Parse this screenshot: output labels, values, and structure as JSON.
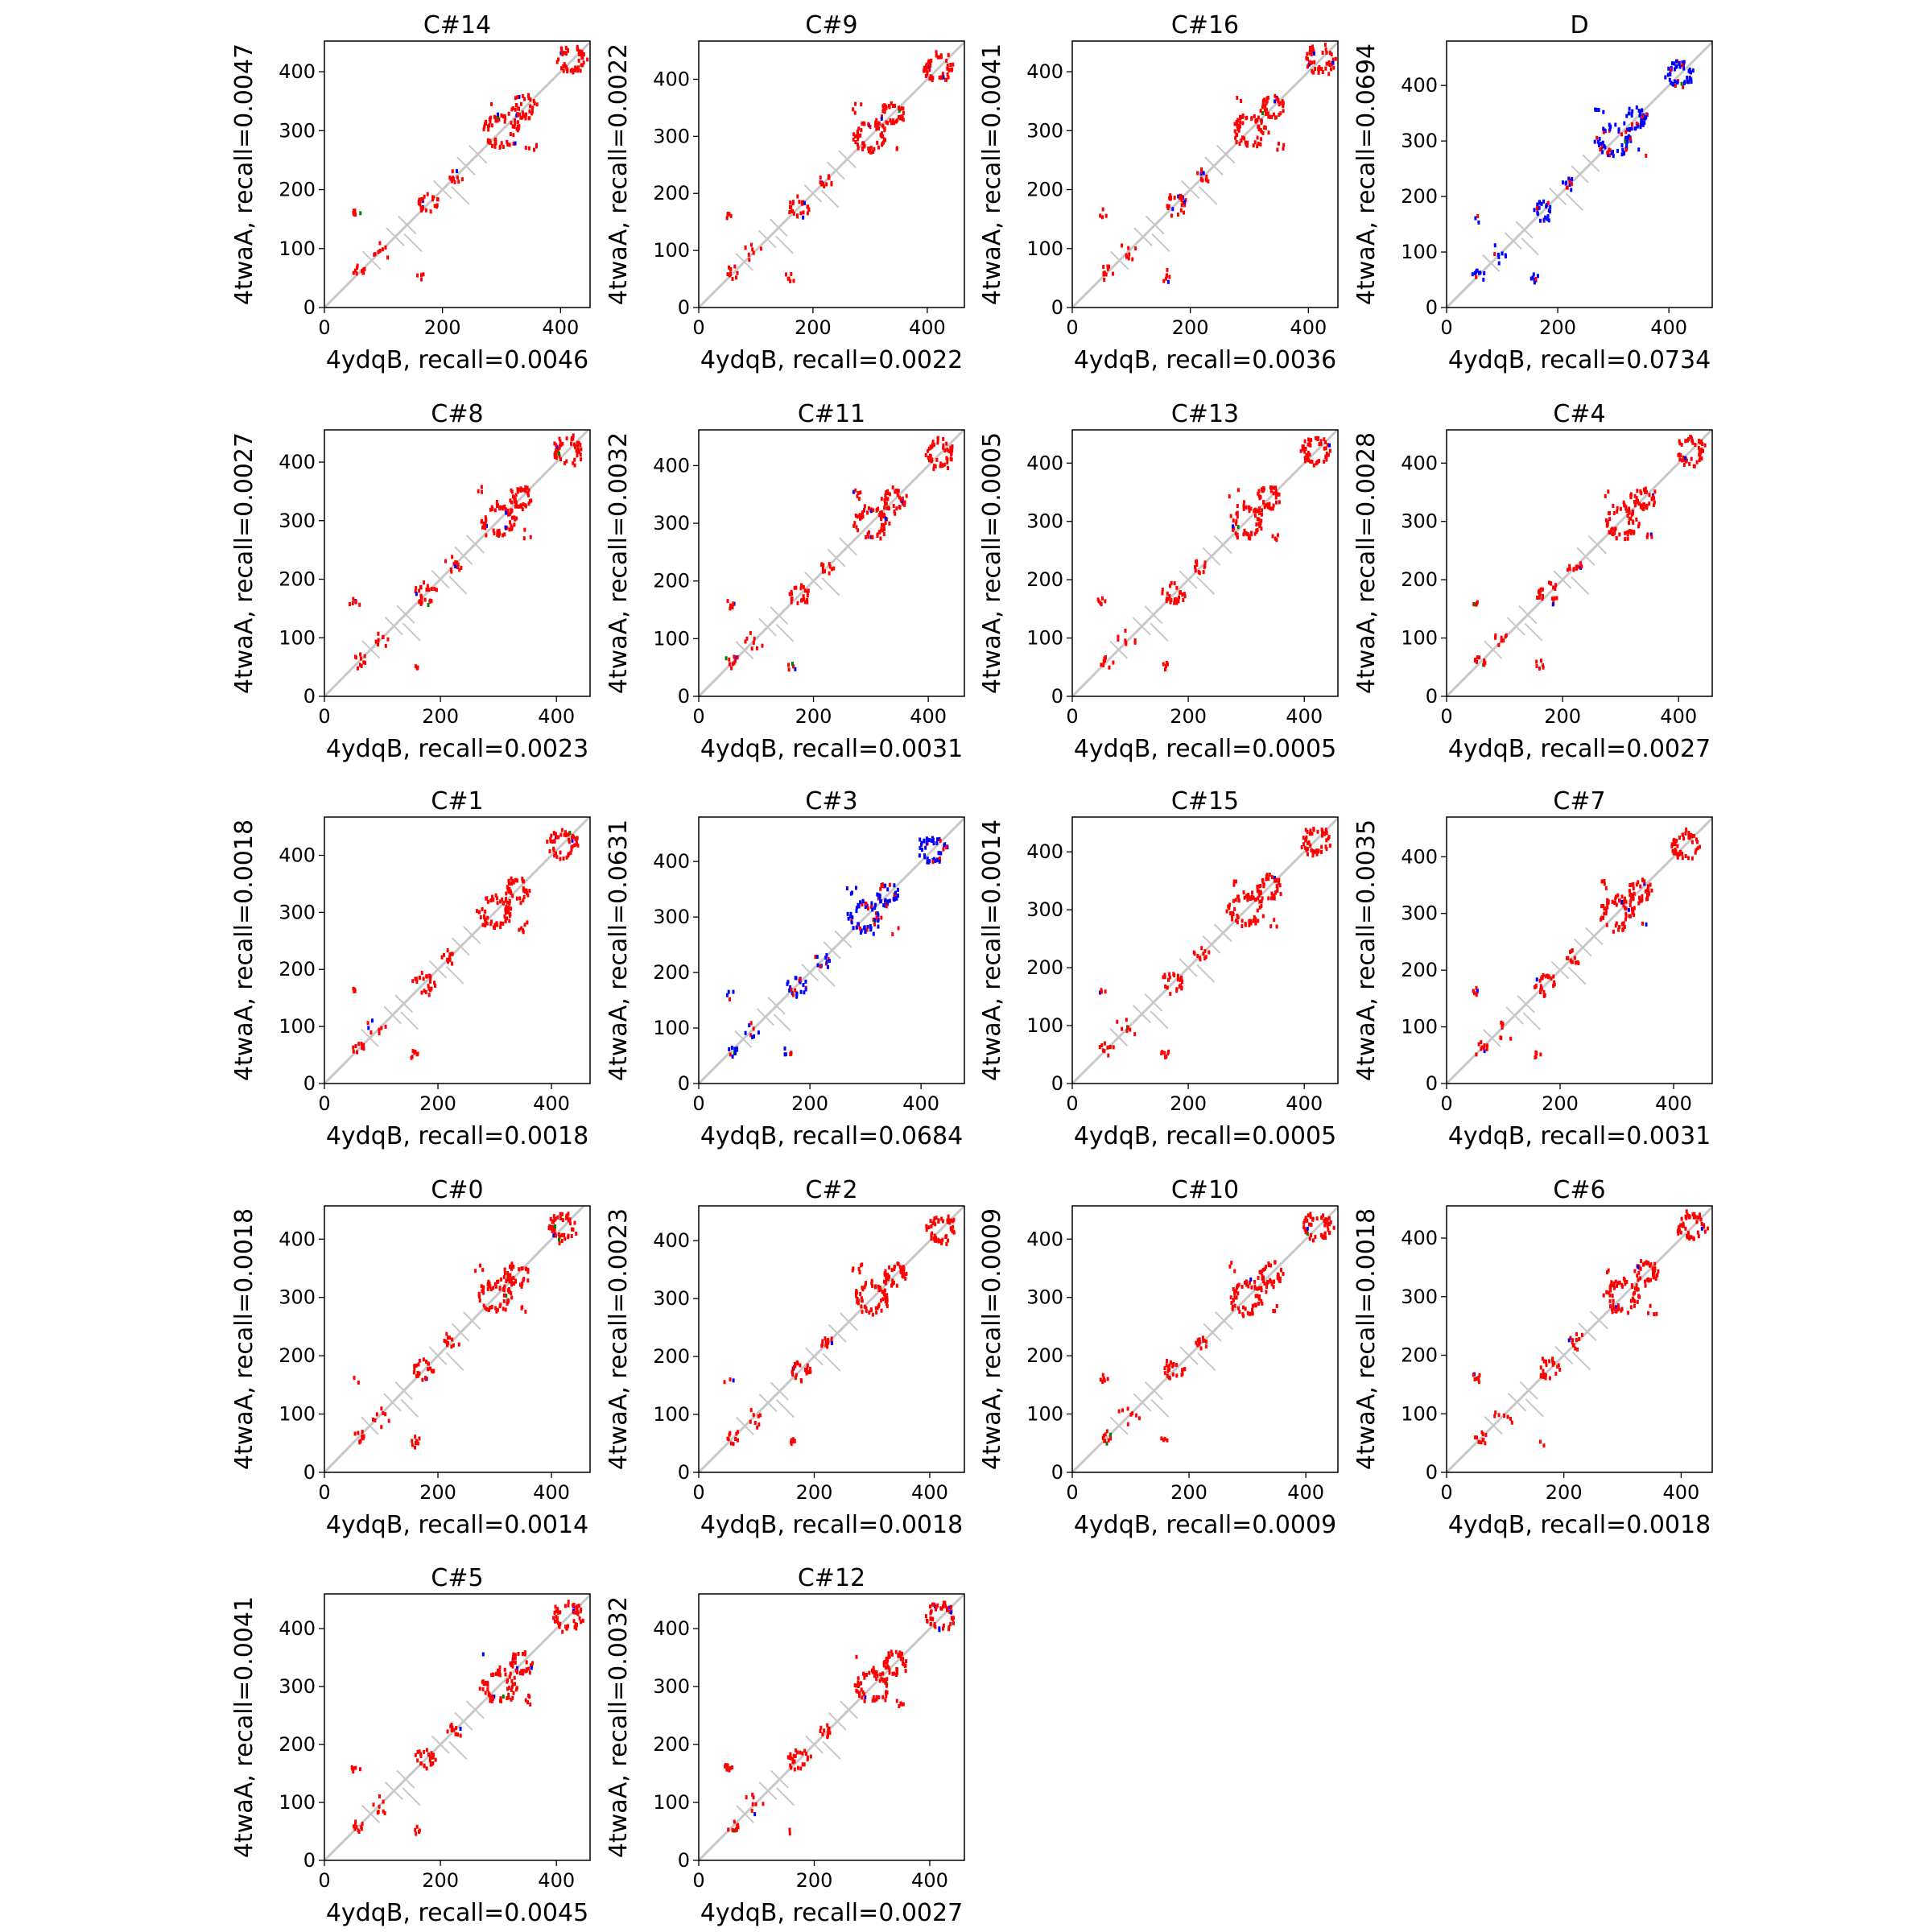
{
  "chart_data": {
    "type": "scatter",
    "description_units": "residue index",
    "colors": {
      "predicted_only": "#ff0000",
      "true_positive": "#0000ff",
      "near_hit": "#008000",
      "reference": "#c8c8c8"
    },
    "reference_crosses": [
      [
        80,
        80
      ],
      [
        120,
        120
      ],
      [
        140,
        140
      ],
      [
        200,
        200
      ],
      [
        240,
        240
      ],
      [
        260,
        260
      ],
      [
        150,
        110
      ],
      [
        230,
        190
      ]
    ],
    "panels": [
      {
        "title": "C#14",
        "xlabel": "4ydqB, recall=0.0046",
        "ylabel": "4twaA, recall=0.0047",
        "xlim": [
          0,
          450
        ],
        "ylim": [
          0,
          452
        ],
        "xticks": [
          "0",
          "200",
          "400"
        ],
        "yticks": [
          "0",
          "100",
          "200",
          "300",
          "400"
        ],
        "mode": "red",
        "blue_frac": 0.05
      },
      {
        "title": "C#9",
        "xlabel": "4ydqB, recall=0.0022",
        "ylabel": "4twaA, recall=0.0022",
        "xlim": [
          0,
          465
        ],
        "ylim": [
          0,
          467
        ],
        "xticks": [
          "0",
          "200",
          "400"
        ],
        "yticks": [
          "0",
          "100",
          "200",
          "300",
          "400"
        ],
        "mode": "red",
        "blue_frac": 0.03
      },
      {
        "title": "C#16",
        "xlabel": "4ydqB, recall=0.0036",
        "ylabel": "4twaA, recall=0.0041",
        "xlim": [
          0,
          450
        ],
        "ylim": [
          0,
          452
        ],
        "xticks": [
          "0",
          "200",
          "400"
        ],
        "yticks": [
          "0",
          "100",
          "200",
          "300",
          "400"
        ],
        "mode": "red",
        "blue_frac": 0.04
      },
      {
        "title": "D",
        "xlabel": "4ydqB, recall=0.0734",
        "ylabel": "4twaA, recall=0.0694",
        "xlim": [
          0,
          478
        ],
        "ylim": [
          0,
          480
        ],
        "xticks": [
          "0",
          "200",
          "400"
        ],
        "yticks": [
          "0",
          "100",
          "200",
          "300",
          "400"
        ],
        "mode": "blue",
        "blue_frac": 0.8
      },
      {
        "title": "C#8",
        "xlabel": "4ydqB, recall=0.0023",
        "ylabel": "4twaA, recall=0.0027",
        "xlim": [
          0,
          458
        ],
        "ylim": [
          0,
          455
        ],
        "xticks": [
          "0",
          "200",
          "400"
        ],
        "yticks": [
          "0",
          "100",
          "200",
          "300",
          "400"
        ],
        "mode": "red",
        "blue_frac": 0.03
      },
      {
        "title": "C#11",
        "xlabel": "4ydqB, recall=0.0031",
        "ylabel": "4twaA, recall=0.0032",
        "xlim": [
          0,
          463
        ],
        "ylim": [
          0,
          462
        ],
        "xticks": [
          "0",
          "200",
          "400"
        ],
        "yticks": [
          "0",
          "100",
          "200",
          "300",
          "400"
        ],
        "mode": "red",
        "blue_frac": 0.03
      },
      {
        "title": "C#13",
        "xlabel": "4ydqB, recall=0.0005",
        "ylabel": "4twaA, recall=0.0005",
        "xlim": [
          0,
          458
        ],
        "ylim": [
          0,
          457
        ],
        "xticks": [
          "0",
          "200",
          "400"
        ],
        "yticks": [
          "0",
          "100",
          "200",
          "300",
          "400"
        ],
        "mode": "red",
        "blue_frac": 0.01
      },
      {
        "title": "C#4",
        "xlabel": "4ydqB, recall=0.0027",
        "ylabel": "4twaA, recall=0.0028",
        "xlim": [
          0,
          458
        ],
        "ylim": [
          0,
          457
        ],
        "xticks": [
          "0",
          "200",
          "400"
        ],
        "yticks": [
          "0",
          "100",
          "200",
          "300",
          "400"
        ],
        "mode": "red",
        "blue_frac": 0.03
      },
      {
        "title": "C#1",
        "xlabel": "4ydqB, recall=0.0018",
        "ylabel": "4twaA, recall=0.0018",
        "xlim": [
          0,
          468
        ],
        "ylim": [
          0,
          467
        ],
        "xticks": [
          "0",
          "200",
          "400"
        ],
        "yticks": [
          "0",
          "100",
          "200",
          "300",
          "400"
        ],
        "mode": "red",
        "blue_frac": 0.02
      },
      {
        "title": "C#3",
        "xlabel": "4ydqB, recall=0.0684",
        "ylabel": "4twaA, recall=0.0631",
        "xlim": [
          0,
          478
        ],
        "ylim": [
          0,
          480
        ],
        "xticks": [
          "0",
          "200",
          "400"
        ],
        "yticks": [
          "0",
          "100",
          "200",
          "300",
          "400"
        ],
        "mode": "blue",
        "blue_frac": 0.75
      },
      {
        "title": "C#15",
        "xlabel": "4ydqB, recall=0.0005",
        "ylabel": "4twaA, recall=0.0014",
        "xlim": [
          0,
          458
        ],
        "ylim": [
          0,
          460
        ],
        "xticks": [
          "0",
          "200",
          "400"
        ],
        "yticks": [
          "0",
          "100",
          "200",
          "300",
          "400"
        ],
        "mode": "red",
        "blue_frac": 0.01
      },
      {
        "title": "C#7",
        "xlabel": "4ydqB, recall=0.0031",
        "ylabel": "4twaA, recall=0.0035",
        "xlim": [
          0,
          468
        ],
        "ylim": [
          0,
          470
        ],
        "xticks": [
          "0",
          "200",
          "400"
        ],
        "yticks": [
          "0",
          "100",
          "200",
          "300",
          "400"
        ],
        "mode": "red",
        "blue_frac": 0.03
      },
      {
        "title": "C#0",
        "xlabel": "4ydqB, recall=0.0014",
        "ylabel": "4twaA, recall=0.0018",
        "xlim": [
          0,
          468
        ],
        "ylim": [
          0,
          457
        ],
        "xticks": [
          "0",
          "200",
          "400"
        ],
        "yticks": [
          "0",
          "100",
          "200",
          "300",
          "400"
        ],
        "mode": "red",
        "blue_frac": 0.02
      },
      {
        "title": "C#2",
        "xlabel": "4ydqB, recall=0.0018",
        "ylabel": "4twaA, recall=0.0023",
        "xlim": [
          0,
          460
        ],
        "ylim": [
          0,
          460
        ],
        "xticks": [
          "0",
          "200",
          "400"
        ],
        "yticks": [
          "0",
          "100",
          "200",
          "300",
          "400"
        ],
        "mode": "red",
        "blue_frac": 0.02
      },
      {
        "title": "C#10",
        "xlabel": "4ydqB, recall=0.0009",
        "ylabel": "4twaA, recall=0.0009",
        "xlim": [
          0,
          455
        ],
        "ylim": [
          0,
          457
        ],
        "xticks": [
          "0",
          "200",
          "400"
        ],
        "yticks": [
          "0",
          "100",
          "200",
          "300",
          "400"
        ],
        "mode": "red",
        "blue_frac": 0.01
      },
      {
        "title": "C#6",
        "xlabel": "4ydqB, recall=0.0018",
        "ylabel": "4twaA, recall=0.0018",
        "xlim": [
          0,
          453
        ],
        "ylim": [
          0,
          455
        ],
        "xticks": [
          "0",
          "200",
          "400"
        ],
        "yticks": [
          "0",
          "100",
          "200",
          "300",
          "400"
        ],
        "mode": "red",
        "blue_frac": 0.02
      },
      {
        "title": "C#5",
        "xlabel": "4ydqB, recall=0.0045",
        "ylabel": "4twaA, recall=0.0041",
        "xlim": [
          0,
          458
        ],
        "ylim": [
          0,
          460
        ],
        "xticks": [
          "0",
          "200",
          "400"
        ],
        "yticks": [
          "0",
          "100",
          "200",
          "300",
          "400"
        ],
        "mode": "red",
        "blue_frac": 0.04
      },
      {
        "title": "C#12",
        "xlabel": "4ydqB, recall=0.0027",
        "ylabel": "4twaA, recall=0.0032",
        "xlim": [
          0,
          460
        ],
        "ylim": [
          0,
          460
        ],
        "xticks": [
          "0",
          "200",
          "400"
        ],
        "yticks": [
          "0",
          "100",
          "200",
          "300",
          "400"
        ],
        "mode": "red",
        "blue_frac": 0.03
      }
    ],
    "contact_clusters": [
      {
        "cx": 300,
        "cy": 300,
        "r": 30,
        "n": 60
      },
      {
        "cx": 340,
        "cy": 340,
        "r": 20,
        "n": 40
      },
      {
        "cx": 420,
        "cy": 420,
        "r": 25,
        "n": 50
      },
      {
        "cx": 175,
        "cy": 175,
        "r": 18,
        "n": 25
      },
      {
        "cx": 220,
        "cy": 225,
        "r": 10,
        "n": 12
      },
      {
        "cx": 60,
        "cy": 60,
        "r": 10,
        "n": 10
      },
      {
        "cx": 160,
        "cy": 50,
        "r": 5,
        "n": 5
      },
      {
        "cx": 55,
        "cy": 160,
        "r": 5,
        "n": 6
      },
      {
        "cx": 350,
        "cy": 275,
        "r": 8,
        "n": 6
      },
      {
        "cx": 100,
        "cy": 90,
        "r": 12,
        "n": 8
      }
    ]
  }
}
